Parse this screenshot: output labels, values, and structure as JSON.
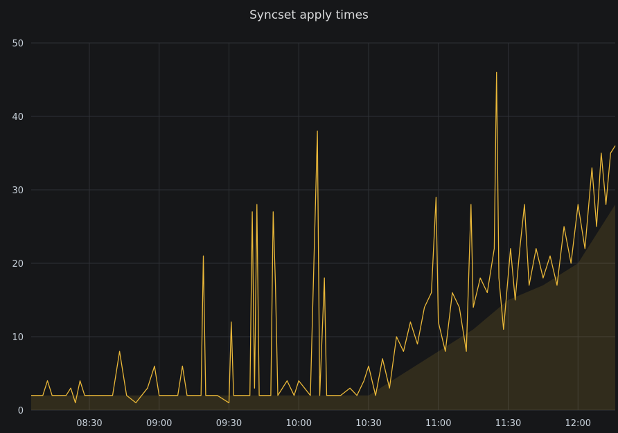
{
  "panel": {
    "title": "Syncset apply times"
  },
  "colors": {
    "background": "#161719",
    "grid": "#2f3136",
    "series_line": "#eab839",
    "series_fill": "rgba(234,184,57,0.13)",
    "text": "#c7d0d9"
  },
  "chart_data": {
    "type": "area",
    "title": "Syncset apply times",
    "xlabel": "",
    "ylabel": "",
    "x_ticks": [
      "08:30",
      "09:00",
      "09:30",
      "10:00",
      "10:30",
      "11:00",
      "11:30",
      "12:00"
    ],
    "x_range": [
      "08:05",
      "12:16"
    ],
    "ylim": [
      0,
      50
    ],
    "y_ticks": [
      0,
      10,
      20,
      30,
      40,
      50
    ],
    "grid": true,
    "legend": "none",
    "series": [
      {
        "lower_baseline": [
          {
            "t": "08:05",
            "v": 2
          },
          {
            "t": "10:30",
            "v": 2
          },
          {
            "t": "10:45",
            "v": 5
          },
          {
            "t": "11:00",
            "v": 8
          },
          {
            "t": "11:15",
            "v": 11
          },
          {
            "t": "11:30",
            "v": 15
          },
          {
            "t": "11:45",
            "v": 17
          },
          {
            "t": "12:00",
            "v": 20
          },
          {
            "t": "12:16",
            "v": 28
          }
        ],
        "points": [
          {
            "t": "08:05",
            "v": 2
          },
          {
            "t": "08:10",
            "v": 2
          },
          {
            "t": "08:12",
            "v": 4
          },
          {
            "t": "08:14",
            "v": 2
          },
          {
            "t": "08:20",
            "v": 2
          },
          {
            "t": "08:22",
            "v": 3
          },
          {
            "t": "08:24",
            "v": 1
          },
          {
            "t": "08:26",
            "v": 4
          },
          {
            "t": "08:28",
            "v": 2
          },
          {
            "t": "08:40",
            "v": 2
          },
          {
            "t": "08:43",
            "v": 8
          },
          {
            "t": "08:46",
            "v": 2
          },
          {
            "t": "08:50",
            "v": 1
          },
          {
            "t": "08:55",
            "v": 3
          },
          {
            "t": "08:58",
            "v": 6
          },
          {
            "t": "09:00",
            "v": 2
          },
          {
            "t": "09:08",
            "v": 2
          },
          {
            "t": "09:10",
            "v": 6
          },
          {
            "t": "09:12",
            "v": 2
          },
          {
            "t": "09:18",
            "v": 2
          },
          {
            "t": "09:19",
            "v": 21
          },
          {
            "t": "09:20",
            "v": 2
          },
          {
            "t": "09:25",
            "v": 2
          },
          {
            "t": "09:30",
            "v": 1
          },
          {
            "t": "09:31",
            "v": 12
          },
          {
            "t": "09:32",
            "v": 2
          },
          {
            "t": "09:35",
            "v": 2
          },
          {
            "t": "09:39",
            "v": 2
          },
          {
            "t": "09:40",
            "v": 27
          },
          {
            "t": "09:41",
            "v": 3
          },
          {
            "t": "09:42",
            "v": 28
          },
          {
            "t": "09:43",
            "v": 2
          },
          {
            "t": "09:48",
            "v": 2
          },
          {
            "t": "09:49",
            "v": 27
          },
          {
            "t": "09:50",
            "v": 17
          },
          {
            "t": "09:51",
            "v": 2
          },
          {
            "t": "09:55",
            "v": 4
          },
          {
            "t": "09:58",
            "v": 2
          },
          {
            "t": "10:00",
            "v": 4
          },
          {
            "t": "10:05",
            "v": 2
          },
          {
            "t": "10:08",
            "v": 38
          },
          {
            "t": "10:09",
            "v": 2
          },
          {
            "t": "10:11",
            "v": 18
          },
          {
            "t": "10:12",
            "v": 2
          },
          {
            "t": "10:18",
            "v": 2
          },
          {
            "t": "10:22",
            "v": 3
          },
          {
            "t": "10:25",
            "v": 2
          },
          {
            "t": "10:28",
            "v": 4
          },
          {
            "t": "10:30",
            "v": 6
          },
          {
            "t": "10:33",
            "v": 2
          },
          {
            "t": "10:36",
            "v": 7
          },
          {
            "t": "10:39",
            "v": 3
          },
          {
            "t": "10:42",
            "v": 10
          },
          {
            "t": "10:45",
            "v": 8
          },
          {
            "t": "10:48",
            "v": 12
          },
          {
            "t": "10:51",
            "v": 9
          },
          {
            "t": "10:54",
            "v": 14
          },
          {
            "t": "10:57",
            "v": 16
          },
          {
            "t": "10:59",
            "v": 29
          },
          {
            "t": "11:00",
            "v": 12
          },
          {
            "t": "11:03",
            "v": 8
          },
          {
            "t": "11:06",
            "v": 16
          },
          {
            "t": "11:09",
            "v": 14
          },
          {
            "t": "11:12",
            "v": 8
          },
          {
            "t": "11:14",
            "v": 28
          },
          {
            "t": "11:15",
            "v": 14
          },
          {
            "t": "11:18",
            "v": 18
          },
          {
            "t": "11:21",
            "v": 16
          },
          {
            "t": "11:24",
            "v": 22
          },
          {
            "t": "11:25",
            "v": 46
          },
          {
            "t": "11:26",
            "v": 18
          },
          {
            "t": "11:28",
            "v": 11
          },
          {
            "t": "11:31",
            "v": 22
          },
          {
            "t": "11:33",
            "v": 15
          },
          {
            "t": "11:35",
            "v": 22
          },
          {
            "t": "11:37",
            "v": 28
          },
          {
            "t": "11:39",
            "v": 17
          },
          {
            "t": "11:42",
            "v": 22
          },
          {
            "t": "11:45",
            "v": 18
          },
          {
            "t": "11:48",
            "v": 21
          },
          {
            "t": "11:51",
            "v": 17
          },
          {
            "t": "11:54",
            "v": 25
          },
          {
            "t": "11:57",
            "v": 20
          },
          {
            "t": "12:00",
            "v": 28
          },
          {
            "t": "12:03",
            "v": 22
          },
          {
            "t": "12:06",
            "v": 33
          },
          {
            "t": "12:08",
            "v": 25
          },
          {
            "t": "12:10",
            "v": 35
          },
          {
            "t": "12:12",
            "v": 28
          },
          {
            "t": "12:14",
            "v": 35
          },
          {
            "t": "12:16",
            "v": 36
          }
        ]
      }
    ]
  }
}
